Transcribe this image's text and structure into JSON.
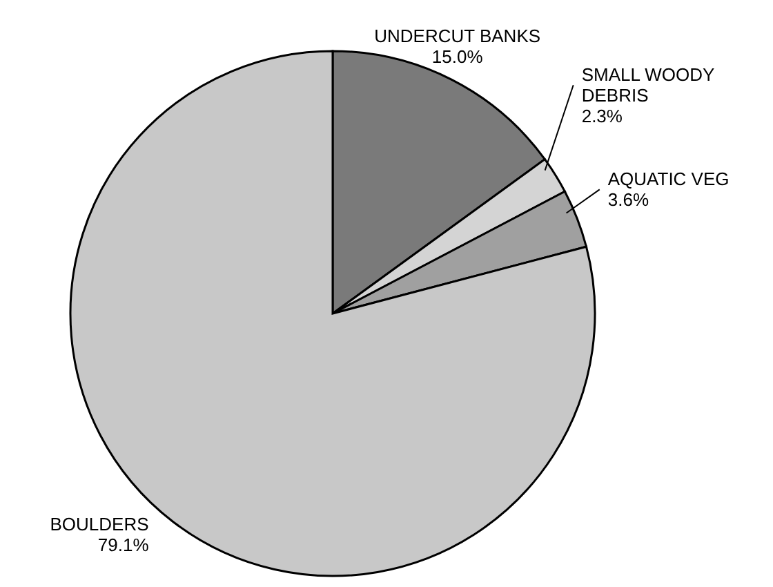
{
  "chart_data": {
    "type": "pie",
    "categories": [
      "UNDERCUT BANKS",
      "SMALL WOODY DEBRIS",
      "AQUATIC VEG",
      "BOULDERS"
    ],
    "values": [
      15.0,
      2.3,
      3.6,
      79.1
    ],
    "colors": [
      "#7a7a7a",
      "#d4d4d4",
      "#a0a0a0",
      "#c8c8c8"
    ],
    "value_labels": [
      "15.0%",
      "2.3%",
      "3.6%",
      "79.1%"
    ]
  }
}
